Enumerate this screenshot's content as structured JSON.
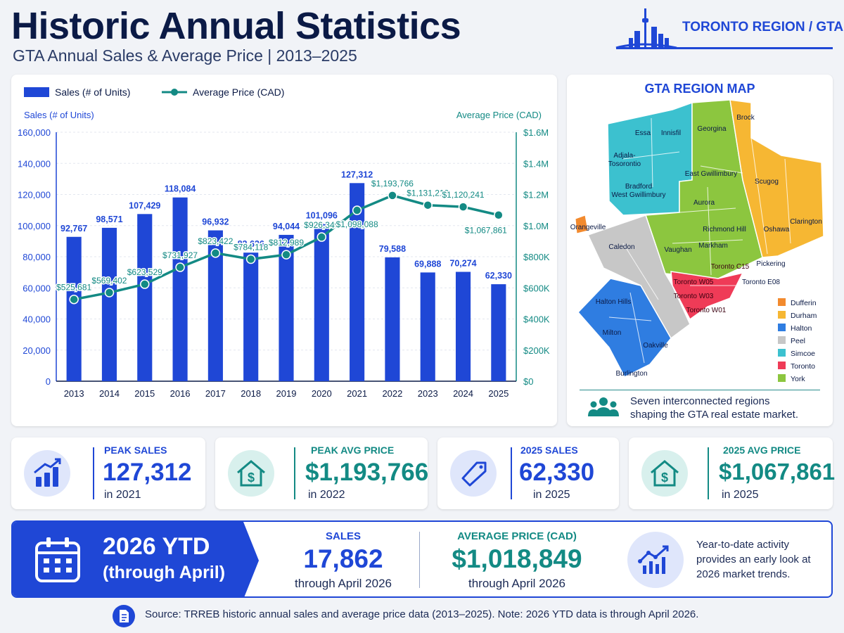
{
  "header": {
    "title": "Historic Annual Statistics",
    "subtitle": "GTA Annual Sales & Average Price | 2013–2025",
    "brand": "TORONTO REGION / GTA",
    "brand_icon": "toronto-skyline-icon"
  },
  "colors": {
    "bar": "#1f47d6",
    "line": "#138a84",
    "navy": "#0b1a46",
    "durham": "#f6b733",
    "toronto": "#ef3b57",
    "york": "#8cc63f",
    "peel": "#c7c7c7",
    "halton": "#2f7de1",
    "simcoe": "#3cc1cf",
    "dufferin": "#f28a2e"
  },
  "chart_data": {
    "type": "bar",
    "categories": [
      "2013",
      "2014",
      "2015",
      "2016",
      "2017",
      "2018",
      "2019",
      "2020",
      "2021",
      "2022",
      "2023",
      "2024",
      "2025"
    ],
    "series": [
      {
        "name": "Sales (# of Units)",
        "type": "bar",
        "axis": "left",
        "values": [
          92767,
          98571,
          107429,
          118084,
          96932,
          82626,
          94044,
          101096,
          127312,
          79588,
          69888,
          70274,
          62330
        ],
        "labels": [
          "92,767",
          "98,571",
          "107,429",
          "118,084",
          "96,932",
          "82,626",
          "94,044",
          "101,096",
          "127,312",
          "79,588",
          "69,888",
          "70,274",
          "62,330"
        ]
      },
      {
        "name": "Average Price (CAD)",
        "type": "line",
        "axis": "right",
        "values": [
          525681,
          569402,
          623529,
          731927,
          823422,
          784118,
          812989,
          926340,
          1098088,
          1193766,
          1131219,
          1120241,
          1067861
        ],
        "labels": [
          "$525,681",
          "$569,402",
          "$623,529",
          "$731,927",
          "$823,422",
          "$784,118",
          "$812,989",
          "$926,340",
          "$1,098,088",
          "$1,193,766",
          "$1,131,219",
          "$1,120,241",
          "$1,067,861"
        ]
      }
    ],
    "ylabel": "Sales (# of Units)",
    "y2label": "Average Price (CAD)",
    "ylim": [
      0,
      160000
    ],
    "y2lim": [
      0,
      1600000
    ],
    "yticks": [
      "0",
      "20,000",
      "40,000",
      "60,000",
      "80,000",
      "100,000",
      "120,000",
      "140,000",
      "160,000"
    ],
    "y2ticks": [
      "$0",
      "$200K",
      "$400K",
      "$600K",
      "$800K",
      "$1.0M",
      "$1.2M",
      "$1.4M",
      "$1.6M"
    ],
    "legend_position": "top-left",
    "grid": true
  },
  "map": {
    "title": "GTA REGION MAP",
    "labels": [
      "Essa",
      "Innisfil",
      "Georgina",
      "Brock",
      "Adjala-\nTosorontio",
      "East Gwillimbury",
      "Bradford\nWest Gwillimbury",
      "Scugog",
      "Aurora",
      "Orangeville",
      "Richmond Hill",
      "Oshawa",
      "Clarington",
      "Caledon",
      "Vaughan",
      "Markham",
      "Toronto C15",
      "Pickering",
      "Toronto W05",
      "Toronto E08",
      "Toronto W03",
      "Toronto W01",
      "Halton Hills",
      "Milton",
      "Oakville",
      "Burlington"
    ],
    "legend": [
      "Dufferin",
      "Durham",
      "Halton",
      "Peel",
      "Simcoe",
      "Toronto",
      "York"
    ],
    "note": [
      "Seven interconnected regions",
      "shaping the GTA real estate market."
    ],
    "note_icon": "people-group-icon"
  },
  "kpis": [
    {
      "label": "PEAK SALES",
      "value": "127,312",
      "sub": "in 2021",
      "icon": "bar-chart-growth-icon"
    },
    {
      "label": "PEAK AVG PRICE",
      "value": "$1,193,766",
      "sub": "in 2022",
      "icon": "house-dollar-icon"
    },
    {
      "label": "2025 SALES",
      "value": "62,330",
      "sub": "in 2025",
      "icon": "price-tag-icon"
    },
    {
      "label": "2025 AVG PRICE",
      "value": "$1,067,861",
      "sub": "in 2025",
      "icon": "house-dollar-icon"
    }
  ],
  "ytd": {
    "title": "2026 YTD",
    "subtitle": "(through April)",
    "icon": "calendar-icon",
    "sales_label": "SALES",
    "sales_value": "17,862",
    "sales_sub": "through April 2026",
    "price_label": "AVERAGE PRICE (CAD)",
    "price_value": "$1,018,849",
    "price_sub": "through April 2026",
    "note_icon": "trend-chart-icon",
    "note": [
      "Year-to-date activity",
      "provides an early look at",
      "2026 market trends."
    ]
  },
  "source": {
    "icon": "document-icon",
    "text": "Source: TRREB historic annual sales and average price data (2013–2025).  Note: 2026 YTD data is through April 2026."
  }
}
